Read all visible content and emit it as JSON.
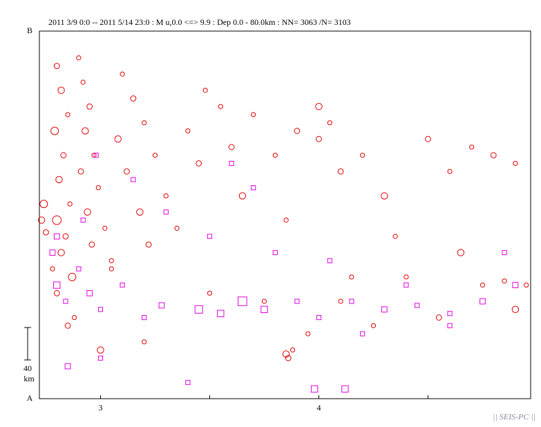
{
  "chart_data": {
    "type": "scatter",
    "title": "2011 3/9 0:0 -- 2011 5/14 23:0  : M u,0.0 <=> 9.9   :  Dep 0.0 - 80.0km :  NN= 3063 /N= 3103",
    "y_top_label": "B",
    "y_bottom_label": "A",
    "scale_bar": {
      "value": 40,
      "label": "40",
      "unit": "km"
    },
    "footer": "|| SEIS-PC ||",
    "xlim": [
      2.72,
      4.97
    ],
    "ylim": [
      0,
      453
    ],
    "xticks": [
      3,
      4
    ],
    "xminor_ticks": [
      3.5,
      4.5
    ],
    "series": [
      {
        "marker": "circle",
        "color": "#e00000",
        "x": [
          2.8,
          2.82,
          2.85,
          2.79,
          2.83,
          2.81,
          2.86,
          2.8,
          2.84,
          2.82,
          2.78,
          2.87,
          2.8,
          2.9,
          2.92,
          2.95,
          2.93,
          2.97,
          2.91,
          2.99,
          2.94,
          3.02,
          2.96,
          3.05,
          2.74,
          2.73,
          2.75,
          3.1,
          3.15,
          3.2,
          3.08,
          3.25,
          3.12,
          3.3,
          3.18,
          3.35,
          3.22,
          3.05,
          3.4,
          3.45,
          3.55,
          3.6,
          3.7,
          3.65,
          3.8,
          3.9,
          3.85,
          4.0,
          4.05,
          4.1,
          4.2,
          4.3,
          4.35,
          4.5,
          4.6,
          4.7,
          4.8,
          4.9,
          4.65,
          4.75,
          4.85,
          3.5,
          3.75,
          3.85,
          3.86,
          3.88,
          3.95,
          4.1,
          4.25,
          4.55,
          4.9,
          4.95,
          3.0,
          2.85,
          3.2,
          3.48,
          4.0,
          4.15,
          4.4,
          2.88
        ],
        "values": [
          410,
          380,
          350,
          330,
          300,
          270,
          240,
          220,
          200,
          180,
          160,
          150,
          130,
          420,
          390,
          360,
          330,
          300,
          280,
          260,
          230,
          210,
          190,
          170,
          240,
          220,
          205,
          400,
          370,
          340,
          320,
          300,
          280,
          250,
          230,
          210,
          190,
          160,
          330,
          290,
          360,
          310,
          350,
          250,
          300,
          330,
          220,
          360,
          340,
          280,
          300,
          250,
          200,
          320,
          280,
          310,
          300,
          290,
          180,
          140,
          145,
          130,
          120,
          55,
          50,
          60,
          80,
          120,
          90,
          100,
          110,
          140,
          60,
          90,
          70,
          380,
          320,
          150,
          150,
          100
        ],
        "sizes": [
          5.5,
          6.0,
          5.0,
          6.5,
          5.5,
          6.0,
          5.0,
          7.0,
          5.5,
          6.0,
          5.0,
          6.5,
          5.5,
          5.0,
          5.0,
          5.5,
          6.0,
          5.0,
          5.5,
          5.0,
          6.0,
          5.0,
          5.5,
          5.0,
          6.5,
          6.0,
          5.5,
          5.0,
          5.5,
          5.0,
          6.0,
          5.0,
          5.5,
          5.0,
          6.0,
          5.0,
          5.5,
          5.0,
          5.0,
          5.5,
          5.0,
          5.5,
          5.0,
          6.0,
          5.0,
          5.5,
          5.0,
          6.0,
          5.0,
          5.5,
          5.0,
          6.0,
          5.0,
          5.5,
          5.0,
          5.0,
          5.5,
          5.0,
          6.0,
          5.0,
          5.0,
          5.0,
          5.0,
          6.0,
          5.5,
          5.0,
          5.0,
          5.0,
          5.0,
          5.5,
          6.0,
          5.0,
          6.0,
          5.5,
          5.0,
          5.0,
          5.5,
          5.0,
          5.0,
          5.0
        ]
      },
      {
        "marker": "square",
        "color": "#e000e0",
        "x": [
          2.8,
          2.78,
          2.84,
          2.9,
          2.95,
          3.0,
          3.1,
          3.2,
          3.28,
          3.45,
          3.55,
          3.65,
          3.75,
          3.9,
          4.0,
          4.15,
          4.3,
          4.45,
          4.6,
          4.75,
          4.9,
          2.85,
          3.0,
          3.4,
          3.98,
          4.12,
          3.3,
          3.5,
          3.7,
          3.8,
          4.05,
          4.4,
          4.85,
          3.15,
          2.8,
          2.92,
          4.2,
          4.6,
          2.98,
          3.6
        ],
        "values": [
          140,
          180,
          120,
          160,
          130,
          110,
          140,
          100,
          115,
          110,
          105,
          120,
          110,
          120,
          100,
          120,
          110,
          115,
          105,
          120,
          140,
          40,
          50,
          20,
          12,
          12,
          230,
          200,
          260,
          180,
          170,
          140,
          180,
          270,
          200,
          220,
          80,
          90,
          300,
          290
        ],
        "sizes": [
          6.0,
          5.5,
          5.0,
          5.0,
          5.5,
          5.0,
          5.0,
          5.0,
          5.5,
          6.5,
          6.0,
          7.0,
          6.0,
          5.0,
          5.0,
          5.0,
          5.5,
          5.0,
          5.0,
          5.5,
          5.5,
          5.5,
          5.0,
          5.0,
          6.0,
          6.0,
          5.0,
          5.0,
          5.0,
          5.0,
          5.0,
          5.0,
          5.0,
          5.0,
          5.5,
          5.0,
          5.0,
          5.0,
          5.0,
          5.0
        ]
      }
    ]
  }
}
